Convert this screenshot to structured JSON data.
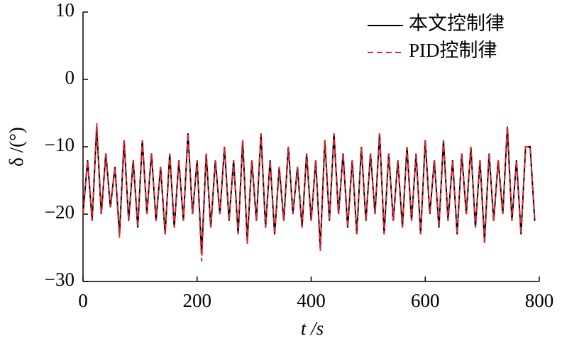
{
  "chart_data": {
    "type": "line",
    "x_label": "t /s",
    "y_label": "δ /(°)",
    "x": [
      0,
      8,
      16,
      24,
      32,
      40,
      48,
      56,
      64,
      72,
      80,
      88,
      96,
      104,
      112,
      120,
      128,
      136,
      144,
      152,
      160,
      168,
      176,
      184,
      192,
      200,
      208,
      216,
      224,
      232,
      240,
      248,
      256,
      264,
      272,
      280,
      288,
      296,
      304,
      312,
      320,
      328,
      336,
      344,
      352,
      360,
      368,
      376,
      384,
      392,
      400,
      408,
      416,
      424,
      432,
      440,
      448,
      456,
      464,
      472,
      480,
      488,
      496,
      504,
      512,
      520,
      528,
      536,
      544,
      552,
      560,
      568,
      576,
      584,
      592,
      600,
      608,
      616,
      624,
      632,
      640,
      648,
      656,
      664,
      672,
      680,
      688,
      696,
      704,
      712,
      720,
      728,
      736,
      744,
      752,
      760,
      768,
      776,
      784,
      792
    ],
    "series": [
      {
        "name": "本文控制律",
        "color": "#000000",
        "dash": false,
        "values": [
          -20,
          -12,
          -21,
          -7,
          -20,
          -11,
          -19,
          -13,
          -23,
          -9,
          -21,
          -12,
          -22,
          -9,
          -20,
          -11,
          -21,
          -13,
          -23,
          -11,
          -22,
          -12,
          -21,
          -8,
          -20,
          -12,
          -26,
          -11,
          -22,
          -12,
          -20,
          -10,
          -21,
          -12,
          -23,
          -9,
          -24,
          -12,
          -21,
          -8,
          -22,
          -12,
          -23,
          -13,
          -21,
          -10,
          -20,
          -13,
          -22,
          -11,
          -21,
          -12,
          -25,
          -9,
          -21,
          -8,
          -20,
          -11,
          -22,
          -12,
          -23,
          -10,
          -21,
          -11,
          -20,
          -8,
          -23,
          -11,
          -21,
          -12,
          -22,
          -10,
          -21,
          -11,
          -23,
          -9,
          -20,
          -12,
          -22,
          -9,
          -21,
          -12,
          -23,
          -11,
          -20,
          -10,
          -22,
          -12,
          -24,
          -11,
          -21,
          -12,
          -20,
          -7,
          -21,
          -12,
          -23,
          -10,
          -10,
          -21
        ]
      },
      {
        "name": "PID控制律",
        "color": "#e0262f",
        "dash": true,
        "values": [
          -20,
          -12,
          -21,
          -6.5,
          -20,
          -11,
          -19,
          -13,
          -23.5,
          -9,
          -21,
          -12,
          -22,
          -9,
          -20,
          -11,
          -21,
          -13,
          -23,
          -11,
          -22,
          -12,
          -21,
          -8,
          -20,
          -12,
          -27,
          -11,
          -22,
          -12,
          -20,
          -10,
          -21,
          -12,
          -23,
          -9,
          -24.5,
          -12,
          -21,
          -8,
          -22,
          -12,
          -23,
          -13,
          -21,
          -10,
          -20,
          -13,
          -22,
          -11,
          -21,
          -12,
          -25.5,
          -9,
          -21,
          -8,
          -20,
          -11,
          -22,
          -12,
          -23,
          -10,
          -21,
          -11,
          -20,
          -8,
          -23,
          -11,
          -21,
          -12,
          -22,
          -10,
          -21,
          -11,
          -23,
          -9,
          -20,
          -12,
          -22,
          -9,
          -21,
          -12,
          -23,
          -11,
          -20,
          -10,
          -22,
          -12,
          -24.5,
          -11,
          -21,
          -12,
          -20,
          -7,
          -21,
          -12,
          -23,
          -10,
          -10,
          -21
        ]
      }
    ],
    "xlim": [
      0,
      800
    ],
    "xticks": [
      0,
      200,
      400,
      600,
      800
    ],
    "ylim": [
      -30,
      10
    ],
    "yticks": [
      {
        "value": -30,
        "label": "−30"
      },
      {
        "value": -20,
        "label": "−20"
      },
      {
        "value": -10,
        "label": "−10"
      },
      0,
      10
    ],
    "legend": "upper right"
  }
}
